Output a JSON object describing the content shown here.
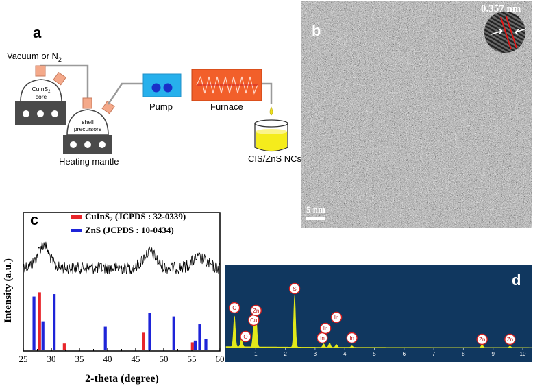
{
  "panel_a": {
    "label": "a",
    "vacuum_label": "Vacuum or N",
    "vacuum_sub": "2",
    "core_line1": "CuInS",
    "core_line1_sub": "2",
    "core_line2": "core",
    "shell_line1": "shell",
    "shell_line2": "precursors",
    "heating_label": "Heating mantle",
    "pump_label": "Pump",
    "furnace_label": "Furnace",
    "product_label": "CIS/ZnS NCs"
  },
  "panel_b": {
    "label": "b",
    "lattice_label": "0.357 nm",
    "scale_label": "5 nm"
  },
  "panel_c": {
    "label": "c",
    "chart_data": {
      "type": "bar",
      "xlabel": "2-theta (degree)",
      "ylabel": "Intensity (a.u.)",
      "xlim": [
        25,
        60
      ],
      "xticks": [
        "25",
        "30",
        "35",
        "40",
        "45",
        "50",
        "55",
        "60"
      ],
      "legend": [
        {
          "name": "CuInS",
          "sub": "2",
          "ref": " (JCPDS : 32-0339)",
          "color": "#e8252a"
        },
        {
          "name": "ZnS",
          "sub": "",
          "ref": " (JCPDS : 10-0434)",
          "color": "#1e24d8"
        }
      ],
      "series": [
        {
          "name": "CuInS2",
          "color": "#e8252a",
          "x": [
            27.9,
            32.3,
            46.4,
            55.1
          ],
          "values": [
            0.95,
            0.1,
            0.28,
            0.12
          ]
        },
        {
          "name": "ZnS",
          "color": "#1e24d8",
          "x": [
            26.9,
            28.5,
            30.5,
            39.6,
            47.5,
            51.8,
            55.6,
            56.4,
            57.5
          ],
          "values": [
            0.88,
            0.47,
            0.92,
            0.38,
            0.61,
            0.55,
            0.15,
            0.42,
            0.18
          ]
        }
      ],
      "xrd_pattern_peaks": [
        {
          "x": 28.6,
          "height": 0.8,
          "width": 1.4
        },
        {
          "x": 47.5,
          "height": 0.55,
          "width": 1.6
        },
        {
          "x": 56.3,
          "height": 0.35,
          "width": 1.8
        }
      ]
    }
  },
  "panel_d": {
    "label": "d",
    "chart_data": {
      "type": "line",
      "xlim": [
        0,
        10.3
      ],
      "xticks": [
        "1",
        "2",
        "3",
        "4",
        "5",
        "6",
        "7",
        "8",
        "9",
        "10"
      ],
      "peaks": [
        {
          "x": 0.28,
          "h": 0.45,
          "label": "C"
        },
        {
          "x": 0.52,
          "h": 0.12,
          "label": "O"
        },
        {
          "x": 0.93,
          "h": 0.28,
          "label": "Cu"
        },
        {
          "x": 1.01,
          "h": 0.45,
          "label": "Zn"
        },
        {
          "x": 2.31,
          "h": 0.75,
          "label": "S"
        },
        {
          "x": 3.29,
          "h": 0.05,
          "label": "In"
        },
        {
          "x": 3.49,
          "h": 0.06,
          "label": "In"
        },
        {
          "x": 3.72,
          "h": 0.04,
          "label": "In"
        },
        {
          "x": 4.24,
          "h": 0.02,
          "label": "In"
        },
        {
          "x": 8.63,
          "h": 0.04,
          "label": "Zn"
        },
        {
          "x": 9.57,
          "h": 0.02,
          "label": "Zn"
        }
      ]
    },
    "colors": {
      "background": "#10375f",
      "spectrum": "#e2e81a",
      "label_ring": "#d82020"
    }
  }
}
